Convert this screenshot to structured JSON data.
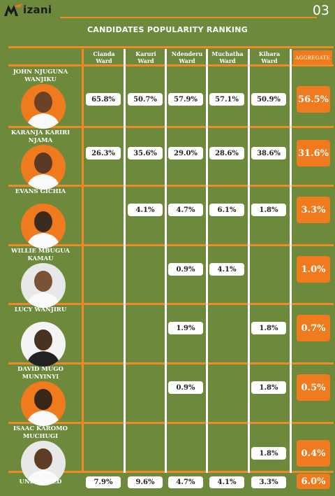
{
  "header": {
    "logo_text": "izani",
    "page_number": "03"
  },
  "chart_data": {
    "type": "table",
    "title": "CANDIDATES POPULARITY RANKING",
    "columns": [
      "Cianda\nWard",
      "Karuri\nWard",
      "Ndenderu\nWard",
      "Muchatha\nWard",
      "Kihara\nWard",
      "AGGREGATE"
    ],
    "rows": [
      {
        "name": "JOHN NJUGUNA WANJIKU",
        "values": [
          "65.8%",
          "50.7%",
          "57.9%",
          "57.1%",
          "50.9%"
        ],
        "aggregate": "56.5%"
      },
      {
        "name": "KARANJA KARIRI NJAMA",
        "values": [
          "26.3%",
          "35.6%",
          "29.0%",
          "28.6%",
          "38.6%"
        ],
        "aggregate": "31.6%"
      },
      {
        "name": "EVANS GICHIA",
        "values": [
          "",
          "4.1%",
          "4.7%",
          "6.1%",
          "1.8%"
        ],
        "aggregate": "3.3%"
      },
      {
        "name": "WILLIE MBUGUA KAMAU",
        "values": [
          "",
          "",
          "0.9%",
          "4.1%",
          ""
        ],
        "aggregate": "1.0%"
      },
      {
        "name": "LUCY WANJIRU",
        "values": [
          "",
          "",
          "1.9%",
          "",
          "1.8%"
        ],
        "aggregate": "0.7%"
      },
      {
        "name": "DAVID MUGO MUNYINYI",
        "values": [
          "",
          "",
          "0.9%",
          "",
          "1.8%"
        ],
        "aggregate": "0.5%"
      },
      {
        "name": "ISAAC KAROMO MUCHUGI",
        "values": [
          "",
          "",
          "",
          "",
          "1.8%"
        ],
        "aggregate": "0.4%"
      }
    ],
    "undecided": {
      "name": "UNDECIDED",
      "values": [
        "7.9%",
        "9.6%",
        "4.7%",
        "4.1%",
        "3.3%"
      ],
      "aggregate": "6.0%"
    }
  },
  "colors": {
    "background": "#6d8a3c",
    "accent": "#f07a1e",
    "cell": "#ffffff"
  }
}
